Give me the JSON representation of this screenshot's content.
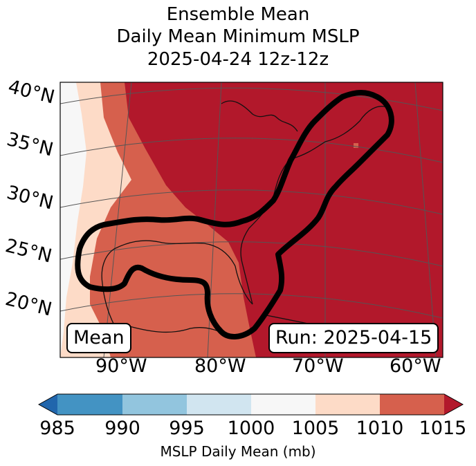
{
  "chart_data": {
    "type": "heatmap",
    "title_lines": [
      "Ensemble Mean",
      "Daily Mean Minimum MSLP",
      "2025-04-24 12z-12z"
    ],
    "latitude_ticks": [
      "40°N",
      "35°N",
      "30°N",
      "25°N",
      "20°N"
    ],
    "longitude_ticks": [
      "90°W",
      "80°W",
      "70°W",
      "60°W"
    ],
    "corner_labels": {
      "left": "Mean",
      "right": "Run: 2025-04-15"
    },
    "colorbar": {
      "label": "MSLP Daily Mean (mb)",
      "ticks": [
        "985",
        "990",
        "995",
        "1000",
        "1005",
        "1010",
        "1015"
      ],
      "extend": "both",
      "bins": [
        {
          "range": "<985",
          "color": "#2166ac"
        },
        {
          "range": "985-990",
          "color": "#4393c3"
        },
        {
          "range": "990-995",
          "color": "#92c5de"
        },
        {
          "range": "995-1000",
          "color": "#d1e5f0"
        },
        {
          "range": "1000-1005",
          "color": "#f7f7f7"
        },
        {
          "range": "1005-1010",
          "color": "#fddbc7"
        },
        {
          "range": "1010-1015",
          "color": "#d6604d"
        },
        {
          "range": ">1015",
          "color": "#b2182b"
        }
      ]
    },
    "regions": [
      {
        "name": "far-west-edge",
        "value_band": "1000-1005"
      },
      {
        "name": "western-gulf-band",
        "value_band": "1005-1010"
      },
      {
        "name": "gulf-central-band",
        "value_band": "1010-1015"
      },
      {
        "name": "eastern-us-atlantic",
        "value_band": ">1015"
      }
    ],
    "contour": {
      "description": "Outlined area along the U.S. East Coast and northern Gulf of Mexico",
      "color": "#000000"
    }
  }
}
